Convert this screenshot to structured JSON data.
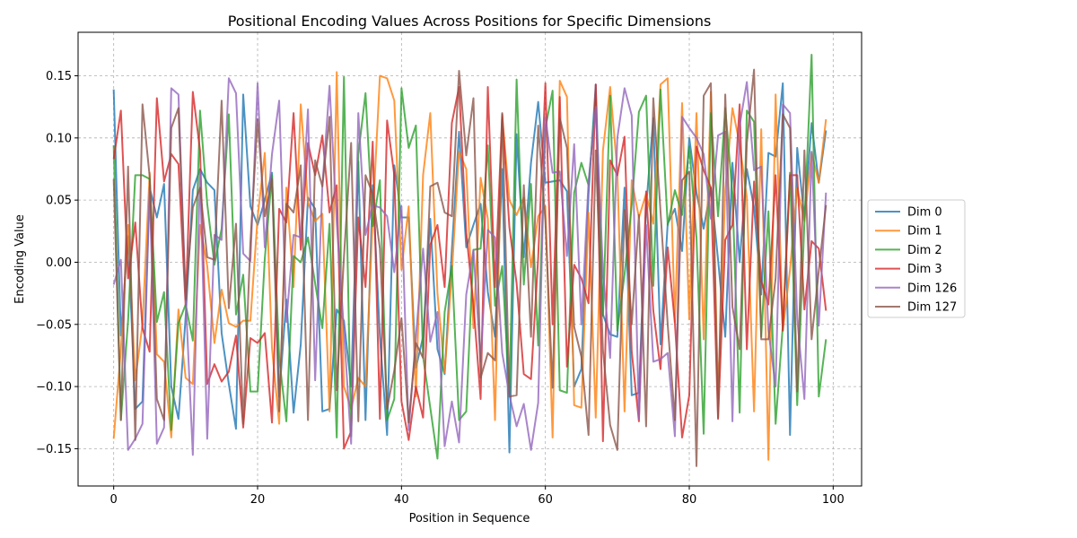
{
  "chart_data": {
    "type": "line",
    "title": "Positional Encoding Values Across Positions for Specific Dimensions",
    "xlabel": "Position in Sequence",
    "ylabel": "Encoding Value",
    "xlim": [
      -4.95,
      103.95
    ],
    "ylim": [
      -0.18,
      0.185
    ],
    "x_ticks": [
      0,
      20,
      40,
      60,
      80,
      100
    ],
    "y_ticks": [
      -0.15,
      -0.1,
      -0.05,
      0.0,
      0.05,
      0.1,
      0.15
    ],
    "y_tick_labels": [
      "−0.15",
      "−0.10",
      "−0.05",
      "0.00",
      "0.05",
      "0.10",
      "0.15"
    ],
    "grid": true,
    "legend_position": "outside-right",
    "x": [
      0,
      1,
      2,
      3,
      4,
      5,
      6,
      7,
      8,
      9,
      10,
      11,
      12,
      13,
      14,
      15,
      16,
      17,
      18,
      19,
      20,
      21,
      22,
      23,
      24,
      25,
      26,
      27,
      28,
      29,
      30,
      31,
      32,
      33,
      34,
      35,
      36,
      37,
      38,
      39,
      40,
      41,
      42,
      43,
      44,
      45,
      46,
      47,
      48,
      49,
      50,
      51,
      52,
      53,
      54,
      55,
      56,
      57,
      58,
      59,
      60,
      61,
      62,
      63,
      64,
      65,
      66,
      67,
      68,
      69,
      70,
      71,
      72,
      73,
      74,
      75,
      76,
      77,
      78,
      79,
      80,
      81,
      82,
      83,
      84,
      85,
      86,
      87,
      88,
      89,
      90,
      91,
      92,
      93,
      94,
      95,
      96,
      97,
      98,
      99
    ],
    "series": [
      {
        "name": "Dim 0",
        "color": "#1f77b4",
        "values": [
          0.139,
          -0.059,
          0.021,
          -0.118,
          -0.112,
          0.06,
          0.036,
          0.063,
          -0.1,
          -0.126,
          -0.044,
          0.058,
          0.075,
          0.064,
          0.058,
          -0.057,
          -0.098,
          -0.134,
          0.135,
          0.045,
          0.03,
          0.05,
          0.072,
          -0.108,
          -0.03,
          -0.121,
          -0.066,
          0.052,
          0.043,
          -0.12,
          -0.118,
          -0.038,
          -0.047,
          -0.1,
          0.081,
          -0.127,
          0.062,
          -0.06,
          -0.139,
          0.078,
          0.036,
          0.036,
          -0.085,
          -0.06,
          0.035,
          -0.07,
          -0.09,
          0.01,
          0.105,
          0.012,
          0.03,
          0.047,
          -0.024,
          -0.06,
          0.075,
          -0.153,
          0.103,
          0.004,
          0.08,
          0.129,
          0.064,
          0.065,
          0.066,
          0.057,
          -0.1,
          -0.086,
          0.055,
          0.143,
          -0.042,
          -0.058,
          -0.06,
          0.06,
          -0.107,
          -0.105,
          0.044,
          0.116,
          -0.066,
          0.031,
          0.043,
          0.009,
          0.1,
          0.056,
          0.027,
          0.06,
          0.002,
          -0.06,
          0.08,
          0.0,
          0.075,
          0.044,
          -0.026,
          0.088,
          0.085,
          0.144,
          -0.139,
          0.092,
          0.035,
          0.112,
          0.064,
          0.106
        ]
      },
      {
        "name": "Dim 1",
        "color": "#ff7f0e",
        "values": [
          -0.142,
          -0.07,
          0.03,
          -0.095,
          -0.05,
          0.072,
          -0.074,
          -0.08,
          -0.141,
          -0.038,
          -0.093,
          -0.098,
          0.03,
          -0.003,
          -0.065,
          -0.022,
          -0.049,
          -0.052,
          -0.047,
          -0.047,
          0.036,
          0.088,
          -0.069,
          -0.13,
          0.06,
          -0.02,
          0.127,
          0.048,
          0.033,
          0.039,
          -0.12,
          0.153,
          -0.1,
          -0.118,
          -0.093,
          -0.1,
          0.035,
          0.15,
          0.148,
          0.13,
          -0.006,
          0.045,
          -0.108,
          0.07,
          0.12,
          -0.025,
          -0.089,
          -0.009,
          0.089,
          0.075,
          -0.053,
          0.068,
          0.035,
          -0.127,
          0.118,
          0.05,
          0.038,
          0.052,
          -0.004,
          0.037,
          0.045,
          -0.141,
          0.146,
          0.133,
          -0.115,
          -0.117,
          0.04,
          -0.125,
          0.09,
          0.141,
          0.073,
          -0.12,
          0.066,
          0.036,
          0.055,
          0.031,
          0.143,
          0.148,
          -0.048,
          0.128,
          -0.046,
          0.12,
          -0.062,
          0.137,
          -0.107,
          0.058,
          0.124,
          0.095,
          0.052,
          -0.12,
          0.107,
          -0.159,
          0.135,
          -0.055,
          -0.006,
          0.06,
          0.033,
          0.088,
          0.064,
          0.115
        ]
      },
      {
        "name": "Dim 2",
        "color": "#2ca02c",
        "values": [
          0.094,
          -0.127,
          -0.047,
          0.07,
          0.07,
          0.067,
          -0.048,
          -0.024,
          -0.135,
          -0.049,
          -0.034,
          -0.063,
          0.122,
          0.047,
          -0.002,
          0.027,
          0.119,
          -0.042,
          -0.01,
          -0.104,
          -0.104,
          0.003,
          0.07,
          -0.077,
          -0.128,
          0.005,
          0.0,
          0.02,
          -0.017,
          -0.053,
          0.031,
          -0.141,
          0.149,
          -0.14,
          0.087,
          0.136,
          0.029,
          0.066,
          -0.127,
          -0.11,
          0.14,
          0.092,
          0.11,
          -0.076,
          -0.117,
          -0.158,
          -0.04,
          -0.003,
          -0.127,
          -0.12,
          0.01,
          0.011,
          0.094,
          -0.035,
          -0.003,
          -0.106,
          0.147,
          -0.018,
          0.063,
          -0.067,
          0.108,
          0.138,
          -0.103,
          -0.105,
          0.056,
          0.08,
          0.062,
          0.131,
          -0.043,
          0.134,
          -0.055,
          -0.01,
          0.046,
          0.121,
          0.134,
          -0.019,
          0.139,
          0.03,
          0.058,
          0.038,
          0.093,
          0.02,
          -0.138,
          0.12,
          0.037,
          0.124,
          0.055,
          -0.121,
          0.122,
          0.113,
          -0.06,
          0.041,
          -0.13,
          -0.051,
          0.072,
          -0.115,
          0.032,
          0.167,
          -0.108,
          -0.062
        ]
      },
      {
        "name": "Dim 3",
        "color": "#d62728",
        "values": [
          0.083,
          0.122,
          -0.013,
          0.032,
          -0.053,
          -0.072,
          0.132,
          0.065,
          0.087,
          0.079,
          -0.035,
          0.137,
          0.09,
          -0.098,
          -0.082,
          -0.096,
          -0.088,
          -0.059,
          -0.133,
          -0.061,
          -0.065,
          -0.057,
          -0.129,
          0.043,
          0.032,
          0.12,
          0.01,
          0.096,
          0.07,
          0.102,
          0.04,
          0.062,
          -0.15,
          -0.136,
          0.036,
          -0.02,
          0.097,
          -0.126,
          0.114,
          0.07,
          -0.112,
          -0.143,
          -0.1,
          -0.125,
          0.014,
          0.03,
          -0.02,
          0.112,
          0.141,
          0.024,
          -0.034,
          -0.11,
          0.141,
          -0.02,
          0.119,
          0.028,
          -0.017,
          -0.09,
          -0.094,
          0.004,
          0.144,
          -0.05,
          0.133,
          -0.084,
          -0.002,
          -0.013,
          -0.033,
          0.143,
          -0.144,
          0.082,
          0.07,
          0.101,
          -0.072,
          -0.128,
          0.057,
          -0.039,
          -0.086,
          0.012,
          -0.049,
          -0.141,
          -0.107,
          0.093,
          0.074,
          0.06,
          -0.126,
          0.018,
          0.03,
          0.127,
          -0.07,
          0.065,
          -0.015,
          -0.034,
          0.07,
          -0.055,
          0.07,
          0.07,
          -0.038,
          0.017,
          0.011,
          -0.039
        ]
      },
      {
        "name": "Dim 126",
        "color": "#9467bd",
        "values": [
          -0.018,
          0.002,
          -0.151,
          -0.142,
          -0.13,
          0.06,
          -0.146,
          -0.133,
          0.14,
          0.135,
          -0.028,
          -0.155,
          0.073,
          -0.142,
          0.022,
          0.018,
          0.148,
          0.136,
          0.007,
          0.001,
          0.144,
          0.012,
          0.087,
          0.13,
          -0.048,
          0.022,
          0.02,
          0.123,
          -0.095,
          0.061,
          0.142,
          0.032,
          -0.055,
          -0.146,
          0.12,
          0.022,
          0.046,
          0.044,
          0.037,
          -0.008,
          0.045,
          -0.135,
          -0.06,
          0.011,
          -0.064,
          -0.04,
          -0.148,
          -0.112,
          -0.145,
          -0.026,
          0.01,
          -0.08,
          0.026,
          0.02,
          -0.073,
          -0.107,
          -0.132,
          -0.114,
          -0.151,
          -0.113,
          0.117,
          0.072,
          0.073,
          0.005,
          0.095,
          -0.05,
          0.065,
          0.125,
          -0.006,
          -0.077,
          0.1,
          0.14,
          0.118,
          -0.126,
          0.03,
          -0.08,
          -0.078,
          -0.073,
          -0.14,
          0.117,
          0.108,
          0.1,
          0.087,
          0.035,
          0.102,
          0.105,
          -0.128,
          0.11,
          0.145,
          0.074,
          0.077,
          -0.055,
          -0.1,
          0.127,
          0.12,
          -0.045,
          -0.11,
          0.089,
          -0.051,
          0.056
        ]
      },
      {
        "name": "Dim 127",
        "color": "#8c564b",
        "values": [
          0.067,
          -0.127,
          0.077,
          -0.143,
          0.127,
          0.069,
          -0.11,
          -0.127,
          0.108,
          0.124,
          -0.03,
          0.044,
          0.06,
          0.004,
          0.002,
          0.13,
          -0.037,
          0.031,
          -0.13,
          0.016,
          0.115,
          0.037,
          0.067,
          -0.12,
          0.047,
          0.04,
          0.078,
          -0.127,
          0.082,
          0.061,
          0.117,
          -0.103,
          0.004,
          0.096,
          -0.128,
          0.07,
          0.055,
          0.011,
          -0.118,
          -0.087,
          -0.045,
          -0.129,
          -0.065,
          -0.077,
          0.061,
          0.064,
          0.04,
          0.037,
          0.154,
          0.086,
          0.132,
          -0.093,
          -0.073,
          -0.079,
          0.12,
          -0.108,
          -0.107,
          0.062,
          -0.06,
          0.11,
          0.033,
          -0.101,
          0.116,
          0.092,
          -0.052,
          -0.076,
          -0.139,
          0.09,
          -0.071,
          -0.131,
          -0.151,
          0.042,
          -0.05,
          0.038,
          -0.132,
          0.132,
          0.041,
          -0.05,
          -0.127,
          0.066,
          0.073,
          -0.164,
          0.134,
          0.144,
          -0.125,
          0.135,
          -0.036,
          -0.07,
          0.096,
          0.155,
          -0.062,
          -0.062,
          -0.013,
          0.119,
          0.108,
          -0.104,
          0.09,
          -0.062,
          -0.007,
          0.046
        ]
      }
    ]
  }
}
